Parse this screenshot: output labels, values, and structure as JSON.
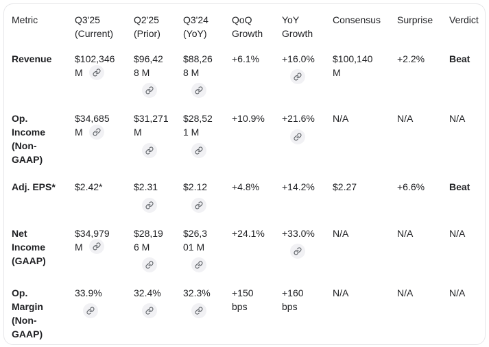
{
  "colors": {
    "text": "#202124",
    "border": "#e6e6e9",
    "pill_background": "#f1f1f4",
    "pill_icon": "#5f6368",
    "background": "#ffffff"
  },
  "icons": {
    "link_icon": "link-icon"
  },
  "table": {
    "columns": [
      {
        "id": "metric",
        "label": "Metric"
      },
      {
        "id": "q3-25-current",
        "label": "Q3'25\n(Current)"
      },
      {
        "id": "q2-25-prior",
        "label": "Q2'25\n(Prior)"
      },
      {
        "id": "q3-24-yoy",
        "label": "Q3'24\n(YoY)"
      },
      {
        "id": "qoq-growth",
        "label": "QoQ\nGrowth"
      },
      {
        "id": "yoy-growth",
        "label": "YoY\nGrowth"
      },
      {
        "id": "consensus",
        "label": "Consensus"
      },
      {
        "id": "surprise",
        "label": "Surprise"
      },
      {
        "id": "verdict",
        "label": "Verdict"
      }
    ],
    "rows": [
      {
        "metric": "Revenue",
        "cells": [
          {
            "text": "$102,346\nM",
            "link": "inline"
          },
          {
            "text": "$96,42\n8 M",
            "link": "below"
          },
          {
            "text": "$88,26\n8 M",
            "link": "below"
          },
          {
            "text": "+6.1%",
            "link": "none"
          },
          {
            "text": "+16.0%",
            "link": "below"
          },
          {
            "text": "$100,140\nM",
            "link": "none"
          },
          {
            "text": "+2.2%",
            "link": "none"
          },
          {
            "text": "Beat",
            "link": "none",
            "bold": true
          }
        ]
      },
      {
        "metric": "Op.\nIncome\n(Non-\nGAAP)",
        "cells": [
          {
            "text": "$34,685\nM",
            "link": "inline"
          },
          {
            "text": "$31,271\nM",
            "link": "below"
          },
          {
            "text": "$28,52\n1 M",
            "link": "below"
          },
          {
            "text": "+10.9%",
            "link": "none"
          },
          {
            "text": "+21.6%",
            "link": "below"
          },
          {
            "text": "N/A",
            "link": "none"
          },
          {
            "text": "N/A",
            "link": "none"
          },
          {
            "text": "N/A",
            "link": "none"
          }
        ]
      },
      {
        "metric": "Adj. EPS*",
        "cells": [
          {
            "text": "$2.42*",
            "link": "none"
          },
          {
            "text": "$2.31",
            "link": "below"
          },
          {
            "text": "$2.12",
            "link": "below"
          },
          {
            "text": "+4.8%",
            "link": "none"
          },
          {
            "text": "+14.2%",
            "link": "none"
          },
          {
            "text": "$2.27",
            "link": "none"
          },
          {
            "text": "+6.6%",
            "link": "none"
          },
          {
            "text": "Beat",
            "link": "none",
            "bold": true
          }
        ]
      },
      {
        "metric": "Net\nIncome\n(GAAP)",
        "cells": [
          {
            "text": "$34,979\nM",
            "link": "inline"
          },
          {
            "text": "$28,19\n6 M",
            "link": "below"
          },
          {
            "text": "$26,3\n01 M",
            "link": "below"
          },
          {
            "text": "+24.1%",
            "link": "none"
          },
          {
            "text": "+33.0%",
            "link": "below"
          },
          {
            "text": "N/A",
            "link": "none"
          },
          {
            "text": "N/A",
            "link": "none"
          },
          {
            "text": "N/A",
            "link": "none"
          }
        ]
      },
      {
        "metric": "Op.\nMargin\n(Non-\nGAAP)",
        "cells": [
          {
            "text": "33.9%",
            "link": "below"
          },
          {
            "text": "32.4%",
            "link": "below"
          },
          {
            "text": "32.3%",
            "link": "below"
          },
          {
            "text": "+150\nbps",
            "link": "none"
          },
          {
            "text": "+160\nbps",
            "link": "none"
          },
          {
            "text": "N/A",
            "link": "none"
          },
          {
            "text": "N/A",
            "link": "none"
          },
          {
            "text": "N/A",
            "link": "none"
          }
        ]
      }
    ]
  }
}
